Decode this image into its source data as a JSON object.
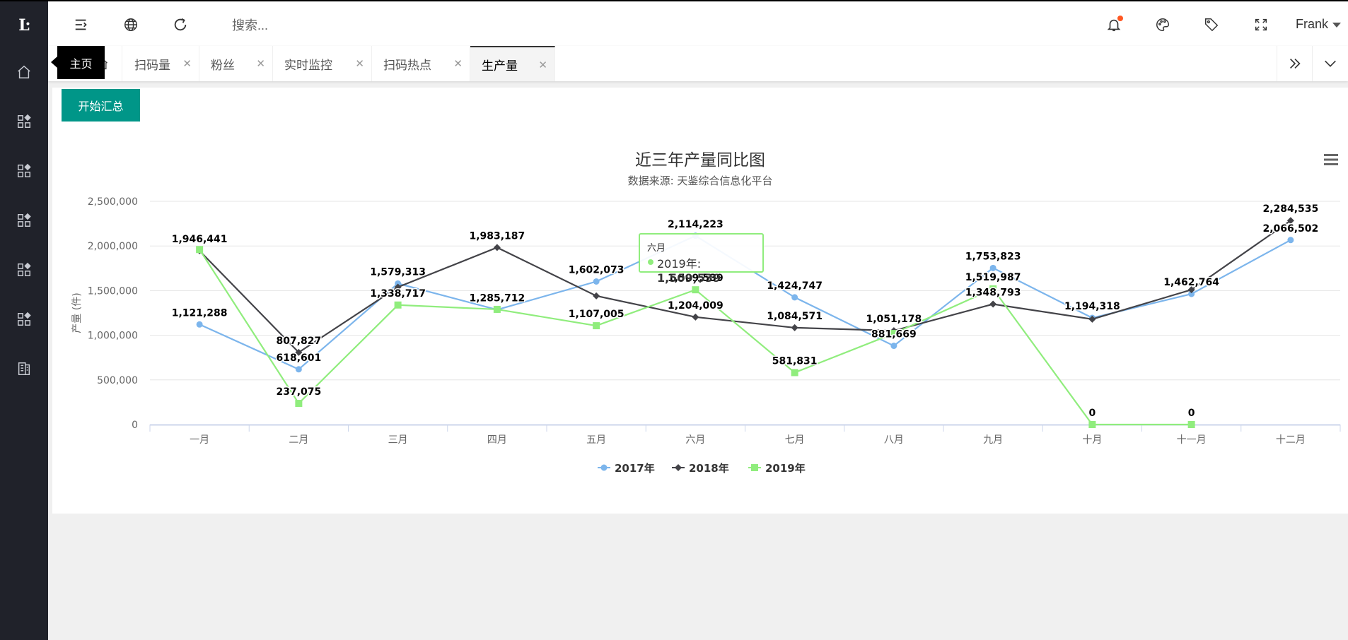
{
  "sidebar": {
    "logo_text": "Ŀ",
    "items": [
      {
        "icon": "home-icon"
      },
      {
        "icon": "grid-icon"
      },
      {
        "icon": "grid-icon"
      },
      {
        "icon": "grid-icon"
      },
      {
        "icon": "grid-icon"
      },
      {
        "icon": "grid-icon"
      },
      {
        "icon": "report-icon"
      }
    ]
  },
  "header": {
    "search_placeholder": "搜索...",
    "user_name": "Frank"
  },
  "tabs": {
    "home_tooltip": "主页",
    "items": [
      {
        "label": "扫码量"
      },
      {
        "label": "粉丝"
      },
      {
        "label": "实时监控"
      },
      {
        "label": "扫码热点"
      },
      {
        "label": "生产量",
        "active": true
      }
    ]
  },
  "toolbar": {
    "summary_button": "开始汇总"
  },
  "colors": {
    "series_2017": "#7cb5ec",
    "series_2018": "#434348",
    "series_2019": "#90ed7d",
    "accent": "#009688"
  },
  "tooltip": {
    "title": "六月",
    "series": "2019年",
    "value": "1,509,539"
  },
  "chart_data": {
    "type": "line",
    "title": "近三年产量同比图",
    "subtitle": "数据来源: 天鉴综合信息化平台",
    "ylabel": "产量 (件)",
    "xlabel": "",
    "ylim": [
      0,
      2500000
    ],
    "yticks": [
      "0",
      "500,000",
      "1,000,000",
      "1,500,000",
      "2,000,000",
      "2,500,000"
    ],
    "categories": [
      "一月",
      "二月",
      "三月",
      "四月",
      "五月",
      "六月",
      "七月",
      "八月",
      "九月",
      "十月",
      "十一月",
      "十二月"
    ],
    "series": [
      {
        "name": "2017年",
        "marker": "circle",
        "values": [
          1121288,
          618601,
          1579313,
          1285712,
          1602073,
          2114223,
          1424747,
          881669,
          1753823,
          1194318,
          1462764,
          2066502
        ]
      },
      {
        "name": "2018年",
        "marker": "diamond",
        "values": [
          1946441,
          807827,
          1538717,
          1983187,
          1441000,
          1204009,
          1084571,
          1051178,
          1348793,
          1180000,
          1510000,
          2284535
        ]
      },
      {
        "name": "2019年",
        "marker": "square",
        "values": [
          1960000,
          237075,
          1338717,
          1290000,
          1107005,
          1509539,
          581831,
          1020000,
          1519987,
          0,
          0,
          null
        ]
      }
    ],
    "data_labels": [
      {
        "series": 1,
        "index": 0,
        "text": "1,946,441"
      },
      {
        "series": 0,
        "index": 0,
        "text": "1,121,288"
      },
      {
        "series": 1,
        "index": 1,
        "text": "807,827"
      },
      {
        "series": 0,
        "index": 1,
        "text": "618,601"
      },
      {
        "series": 2,
        "index": 1,
        "text": "237,075"
      },
      {
        "series": 0,
        "index": 2,
        "text": "1,579,313"
      },
      {
        "series": 2,
        "index": 2,
        "text": "1,338,717"
      },
      {
        "series": 1,
        "index": 3,
        "text": "1,983,187"
      },
      {
        "series": 0,
        "index": 3,
        "text": "1,285,712"
      },
      {
        "series": 0,
        "index": 4,
        "text": "1,602,073"
      },
      {
        "series": 2,
        "index": 4,
        "text": "1,107,005"
      },
      {
        "series": 0,
        "index": 5,
        "text": "2,114,223"
      },
      {
        "series": 2,
        "index": 5,
        "text": "1,509,539"
      },
      {
        "series": 1,
        "index": 5,
        "text": "1,204,009"
      },
      {
        "series": 0,
        "index": 6,
        "text": "1,424,747"
      },
      {
        "series": 1,
        "index": 6,
        "text": "1,084,571"
      },
      {
        "series": 2,
        "index": 6,
        "text": "581,831"
      },
      {
        "series": 1,
        "index": 7,
        "text": "1,051,178"
      },
      {
        "series": 0,
        "index": 7,
        "text": "881,669"
      },
      {
        "series": 0,
        "index": 8,
        "text": "1,753,823"
      },
      {
        "series": 2,
        "index": 8,
        "text": "1,519,987"
      },
      {
        "series": 1,
        "index": 8,
        "text": "1,348,793"
      },
      {
        "series": 0,
        "index": 9,
        "text": "1,194,318"
      },
      {
        "series": 2,
        "index": 9,
        "text": "0"
      },
      {
        "series": 0,
        "index": 10,
        "text": "1,462,764"
      },
      {
        "series": 2,
        "index": 10,
        "text": "0"
      },
      {
        "series": 1,
        "index": 11,
        "text": "2,284,535"
      },
      {
        "series": 0,
        "index": 11,
        "text": "2,066,502"
      }
    ],
    "legend_position": "bottom-center",
    "grid": true
  }
}
